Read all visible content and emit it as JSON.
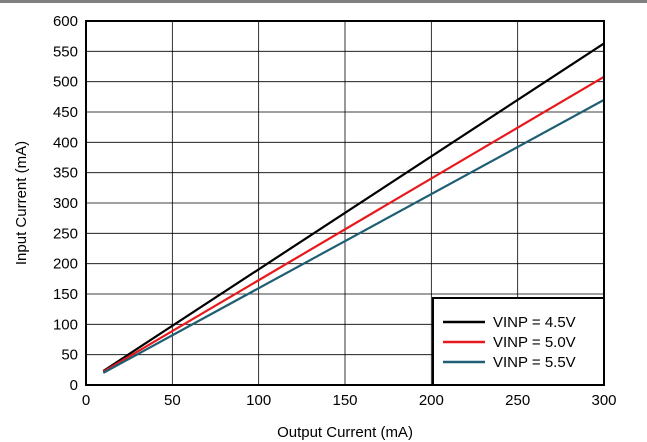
{
  "chart_data": {
    "type": "line",
    "title": "",
    "xlabel": "Output Current (mA)",
    "ylabel": "Input Current (mA)",
    "xlim": [
      0,
      300
    ],
    "ylim": [
      0,
      600
    ],
    "xticks": [
      0,
      50,
      100,
      150,
      200,
      250,
      300
    ],
    "yticks": [
      0,
      50,
      100,
      150,
      200,
      250,
      300,
      350,
      400,
      450,
      500,
      550,
      600
    ],
    "grid": true,
    "legend_position": "bottom-right",
    "series": [
      {
        "name": "VINP = 4.5V",
        "color": "#000000",
        "x": [
          10,
          300
        ],
        "y": [
          23,
          563
        ]
      },
      {
        "name": "VINP = 5.0V",
        "color": "#e8191c",
        "x": [
          10,
          300
        ],
        "y": [
          22,
          508
        ]
      },
      {
        "name": "VINP = 5.5V",
        "color": "#1f5f73",
        "x": [
          10,
          300
        ],
        "y": [
          20,
          470
        ]
      }
    ]
  }
}
